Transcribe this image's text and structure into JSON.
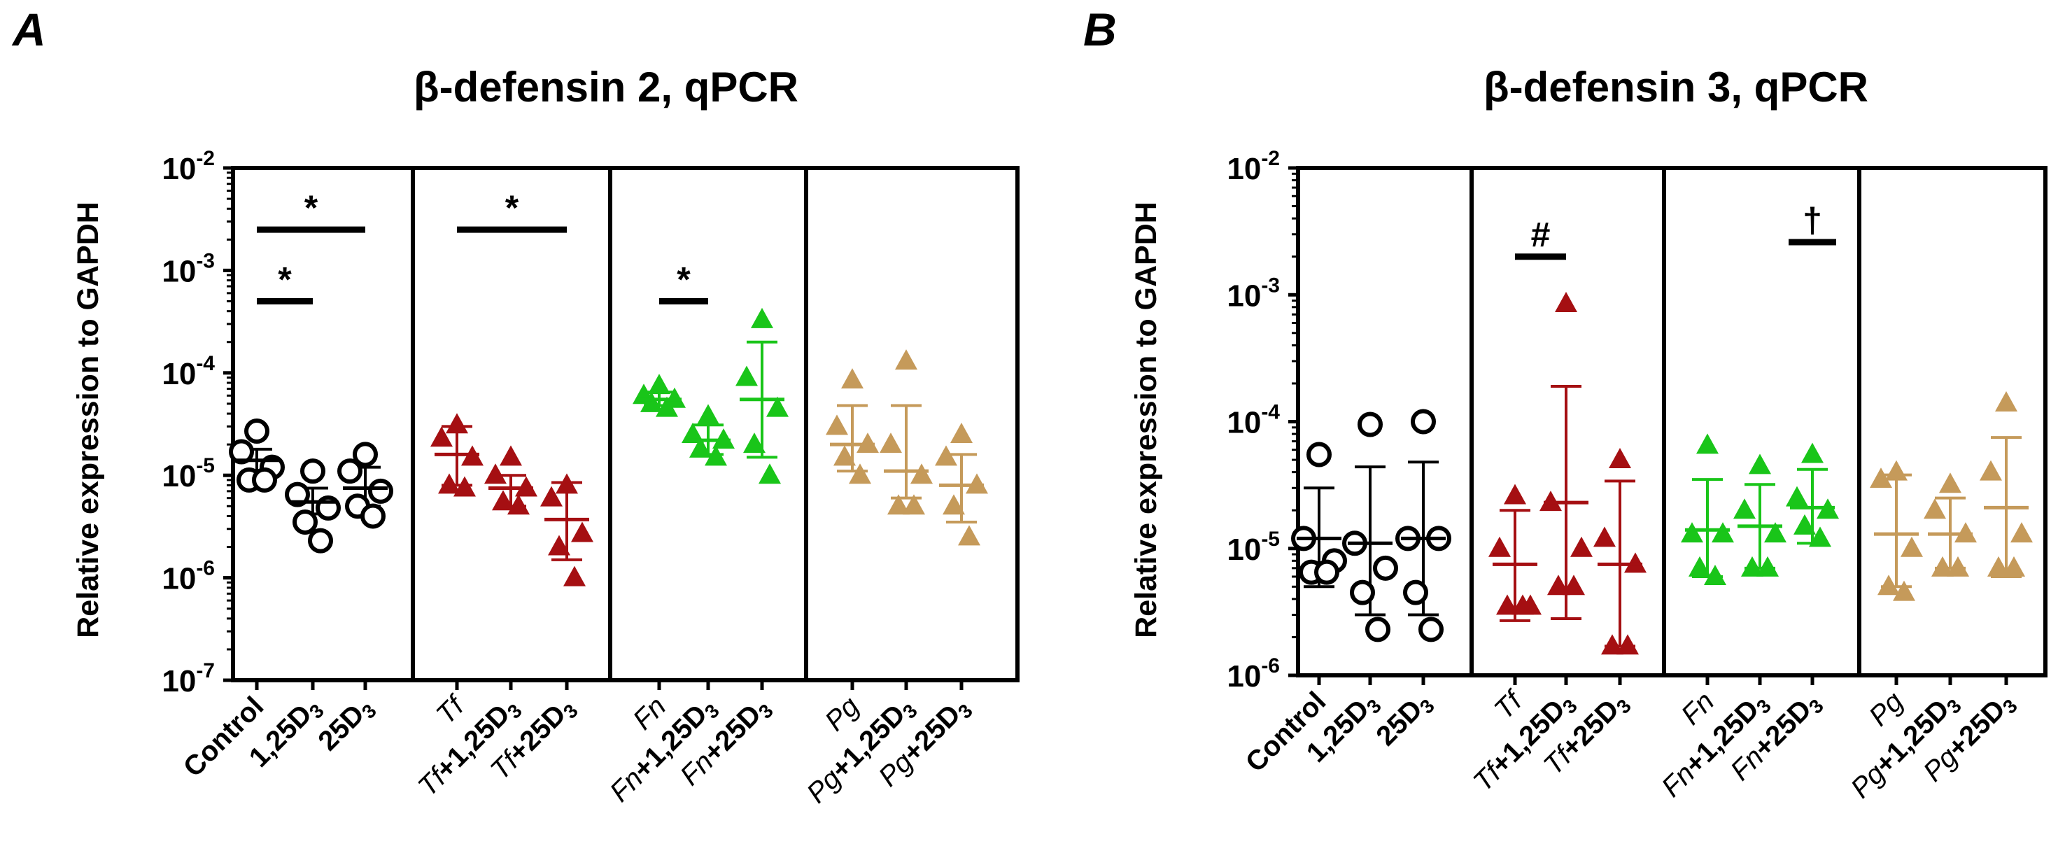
{
  "colors": {
    "control": "#000000",
    "tf": "#a50f12",
    "fn": "#19c519",
    "pg": "#c59a5a"
  },
  "chart_data": [
    {
      "panel": "A",
      "type": "scatter",
      "title": "β-defensin 2, qPCR",
      "ylabel": "Relative expression to GAPDH",
      "yscale": "log",
      "ylim_exp": [
        -7,
        -2
      ],
      "y_ticks": [
        {
          "base": "10",
          "exp": "-2"
        },
        {
          "base": "10",
          "exp": "-3"
        },
        {
          "base": "10",
          "exp": "-4"
        },
        {
          "base": "10",
          "exp": "-5"
        },
        {
          "base": "10",
          "exp": "-6"
        },
        {
          "base": "10",
          "exp": "-7"
        }
      ],
      "groups": [
        {
          "label": [
            {
              "t": "Control",
              "b": true
            }
          ],
          "color": "control",
          "marker": "circle",
          "mean": 1.4e-05,
          "sd": [
            1.1e-05,
            1.8e-05
          ],
          "points": [
            2.7e-05,
            1.7e-05,
            1.2e-05,
            9e-06,
            9e-06
          ]
        },
        {
          "label": [
            {
              "t": "1,25D",
              "b": true
            },
            {
              "t": "3",
              "sub": true,
              "b": true
            }
          ],
          "color": "control",
          "marker": "circle",
          "mean": 5.5e-06,
          "sd": [
            4.2e-06,
            7.5e-06
          ],
          "points": [
            1.1e-05,
            6.5e-06,
            4.8e-06,
            3.5e-06,
            2.3e-06
          ]
        },
        {
          "label": [
            {
              "t": "25D",
              "b": true
            },
            {
              "t": "3",
              "sub": true,
              "b": true
            }
          ],
          "color": "control",
          "marker": "circle",
          "mean": 7.5e-06,
          "sd": [
            5e-06,
            1.2e-05
          ],
          "points": [
            1.6e-05,
            1.1e-05,
            7e-06,
            5e-06,
            4e-06
          ]
        },
        {
          "label": [
            {
              "t": "Tf",
              "i": true
            }
          ],
          "color": "tf",
          "marker": "triangle",
          "mean": 1.6e-05,
          "sd": [
            8e-06,
            3e-05
          ],
          "points": [
            3.1e-05,
            2.3e-05,
            1.5e-05,
            8e-06,
            7.5e-06
          ]
        },
        {
          "label": [
            {
              "t": "Tf",
              "i": true
            },
            {
              "t": "+1,25D",
              "b": true
            },
            {
              "t": "3",
              "sub": true,
              "b": true
            }
          ],
          "color": "tf",
          "marker": "triangle",
          "mean": 7.5e-06,
          "sd": [
            5e-06,
            1e-05
          ],
          "points": [
            1.5e-05,
            1e-05,
            7.5e-06,
            5.5e-06,
            5e-06
          ]
        },
        {
          "label": [
            {
              "t": "Tf",
              "i": true
            },
            {
              "t": "+25D",
              "b": true
            },
            {
              "t": "3",
              "sub": true,
              "b": true
            }
          ],
          "color": "tf",
          "marker": "triangle",
          "mean": 3.7e-06,
          "sd": [
            1.5e-06,
            8.5e-06
          ],
          "points": [
            8e-06,
            6e-06,
            2.7e-06,
            2e-06,
            1e-06
          ]
        },
        {
          "label": [
            {
              "t": "Fn",
              "i": true
            }
          ],
          "color": "fn",
          "marker": "triangle",
          "mean": 5.5e-05,
          "sd": [
            4.8e-05,
            6.5e-05
          ],
          "points": [
            7.5e-05,
            6e-05,
            5.5e-05,
            5e-05,
            4.5e-05
          ]
        },
        {
          "label": [
            {
              "t": "Fn",
              "i": true
            },
            {
              "t": "+1,25D",
              "b": true
            },
            {
              "t": "3",
              "sub": true,
              "b": true
            }
          ],
          "color": "fn",
          "marker": "triangle",
          "mean": 2.2e-05,
          "sd": [
            1.6e-05,
            3.1e-05
          ],
          "points": [
            3.8e-05,
            2.5e-05,
            2.2e-05,
            1.8e-05,
            1.5e-05
          ]
        },
        {
          "label": [
            {
              "t": "Fn",
              "i": true
            },
            {
              "t": "+25D",
              "b": true
            },
            {
              "t": "3",
              "sub": true,
              "b": true
            }
          ],
          "color": "fn",
          "marker": "triangle",
          "mean": 5.5e-05,
          "sd": [
            1.5e-05,
            0.0002
          ],
          "points": [
            0.00033,
            9e-05,
            4.5e-05,
            2e-05,
            1e-05
          ]
        },
        {
          "label": [
            {
              "t": "Pg",
              "i": true
            }
          ],
          "color": "pg",
          "marker": "triangle",
          "mean": 2e-05,
          "sd": [
            1.1e-05,
            4.8e-05
          ],
          "points": [
            8.5e-05,
            3e-05,
            2e-05,
            1.5e-05,
            1e-05
          ]
        },
        {
          "label": [
            {
              "t": "Pg",
              "i": true
            },
            {
              "t": "+1,25D",
              "b": true
            },
            {
              "t": "3",
              "sub": true,
              "b": true
            }
          ],
          "color": "pg",
          "marker": "triangle",
          "mean": 1.1e-05,
          "sd": [
            6e-06,
            4.8e-05
          ],
          "points": [
            0.00013,
            2e-05,
            1e-05,
            5e-06,
            5e-06
          ]
        },
        {
          "label": [
            {
              "t": "Pg",
              "i": true
            },
            {
              "t": "+25D",
              "b": true
            },
            {
              "t": "3",
              "sub": true,
              "b": true
            }
          ],
          "color": "pg",
          "marker": "triangle",
          "mean": 8e-06,
          "sd": [
            3.5e-06,
            1.6e-05
          ],
          "points": [
            2.5e-05,
            1.5e-05,
            8e-06,
            5e-06,
            2.5e-06
          ]
        }
      ],
      "annotations": [
        {
          "text": "*",
          "from": 0,
          "to": 1,
          "y": 0.0005
        },
        {
          "text": "*",
          "from": 0,
          "to": 2,
          "y": 0.0025
        },
        {
          "text": "*",
          "from": 3,
          "to": 5,
          "y": 0.0025
        },
        {
          "text": "*",
          "from": 6,
          "to": 7,
          "y": 0.0005
        }
      ]
    },
    {
      "panel": "B",
      "type": "scatter",
      "title": "β-defensin 3, qPCR",
      "ylabel": "Relative expression to GAPDH",
      "yscale": "log",
      "ylim_exp": [
        -6,
        -2
      ],
      "y_ticks": [
        {
          "base": "10",
          "exp": "-2"
        },
        {
          "base": "10",
          "exp": "-3"
        },
        {
          "base": "10",
          "exp": "-4"
        },
        {
          "base": "10",
          "exp": "-5"
        },
        {
          "base": "10",
          "exp": "-6"
        }
      ],
      "groups": [
        {
          "label": [
            {
              "t": "Control",
              "b": true
            }
          ],
          "color": "control",
          "marker": "circle",
          "mean": 1.2e-05,
          "sd": [
            5e-06,
            3e-05
          ],
          "points": [
            5.5e-05,
            1.2e-05,
            8e-06,
            6.5e-06,
            6.5e-06
          ]
        },
        {
          "label": [
            {
              "t": "1,25D",
              "b": true
            },
            {
              "t": "3",
              "sub": true,
              "b": true
            }
          ],
          "color": "control",
          "marker": "circle",
          "mean": 1.1e-05,
          "sd": [
            3e-06,
            4.4e-05
          ],
          "points": [
            9.5e-05,
            1.1e-05,
            7e-06,
            4.5e-06,
            2.3e-06
          ]
        },
        {
          "label": [
            {
              "t": "25D",
              "b": true
            },
            {
              "t": "3",
              "sub": true,
              "b": true
            }
          ],
          "color": "control",
          "marker": "circle",
          "mean": 1.2e-05,
          "sd": [
            3e-06,
            4.8e-05
          ],
          "points": [
            0.0001,
            1.2e-05,
            1.2e-05,
            4.5e-06,
            2.3e-06
          ]
        },
        {
          "label": [
            {
              "t": "Tf",
              "i": true
            }
          ],
          "color": "tf",
          "marker": "triangle",
          "mean": 7.5e-06,
          "sd": [
            2.7e-06,
            2e-05
          ],
          "points": [
            2.6e-05,
            1e-05,
            3.5e-06,
            3.5e-06,
            3.5e-06
          ]
        },
        {
          "label": [
            {
              "t": "Tf",
              "i": true
            },
            {
              "t": "+1,25D",
              "b": true
            },
            {
              "t": "3",
              "sub": true,
              "b": true
            }
          ],
          "color": "tf",
          "marker": "triangle",
          "mean": 2.3e-05,
          "sd": [
            2.8e-06,
            0.00019
          ],
          "points": [
            0.00085,
            2.3e-05,
            1e-05,
            5e-06,
            5e-06
          ]
        },
        {
          "label": [
            {
              "t": "Tf",
              "i": true
            },
            {
              "t": "+25D",
              "b": true
            },
            {
              "t": "3",
              "sub": true,
              "b": true
            }
          ],
          "color": "tf",
          "marker": "triangle",
          "mean": 7.5e-06,
          "sd": [
            1.7e-06,
            3.4e-05
          ],
          "points": [
            5e-05,
            1.2e-05,
            7.5e-06,
            1.7e-06,
            1.7e-06
          ]
        },
        {
          "label": [
            {
              "t": "Fn",
              "i": true
            }
          ],
          "color": "fn",
          "marker": "triangle",
          "mean": 1.4e-05,
          "sd": [
            6e-06,
            3.5e-05
          ],
          "points": [
            6.5e-05,
            1.3e-05,
            1.3e-05,
            7e-06,
            6e-06
          ]
        },
        {
          "label": [
            {
              "t": "Fn",
              "i": true
            },
            {
              "t": "+1,25D",
              "b": true
            },
            {
              "t": "3",
              "sub": true,
              "b": true
            }
          ],
          "color": "fn",
          "marker": "triangle",
          "mean": 1.5e-05,
          "sd": [
            7e-06,
            3.2e-05
          ],
          "points": [
            4.5e-05,
            2e-05,
            1.3e-05,
            7e-06,
            7e-06
          ]
        },
        {
          "label": [
            {
              "t": "Fn",
              "i": true
            },
            {
              "t": "+25D",
              "b": true
            },
            {
              "t": "3",
              "sub": true,
              "b": true
            }
          ],
          "color": "fn",
          "marker": "triangle",
          "mean": 2.1e-05,
          "sd": [
            1.1e-05,
            4.2e-05
          ],
          "points": [
            5.5e-05,
            2.5e-05,
            2e-05,
            1.5e-05,
            1.2e-05
          ]
        },
        {
          "label": [
            {
              "t": "Pg",
              "i": true
            }
          ],
          "color": "pg",
          "marker": "triangle",
          "mean": 1.3e-05,
          "sd": [
            5e-06,
            3.8e-05
          ],
          "points": [
            4e-05,
            3.5e-05,
            1e-05,
            5e-06,
            4.5e-06
          ]
        },
        {
          "label": [
            {
              "t": "Pg",
              "i": true
            },
            {
              "t": "+1,25D",
              "b": true
            },
            {
              "t": "3",
              "sub": true,
              "b": true
            }
          ],
          "color": "pg",
          "marker": "triangle",
          "mean": 1.3e-05,
          "sd": [
            7e-06,
            2.5e-05
          ],
          "points": [
            3.2e-05,
            2e-05,
            1.3e-05,
            7e-06,
            7e-06
          ]
        },
        {
          "label": [
            {
              "t": "Pg",
              "i": true
            },
            {
              "t": "+25D",
              "b": true
            },
            {
              "t": "3",
              "sub": true,
              "b": true
            }
          ],
          "color": "pg",
          "marker": "triangle",
          "mean": 2.1e-05,
          "sd": [
            6e-06,
            7.5e-05
          ],
          "points": [
            0.00014,
            4e-05,
            1.3e-05,
            7e-06,
            7e-06
          ]
        }
      ],
      "annotations": [
        {
          "text": "#",
          "from": 3,
          "to": 4,
          "y": 0.002
        },
        {
          "text": "†",
          "from": 8,
          "to": 8,
          "y": 0.0026
        }
      ]
    }
  ]
}
